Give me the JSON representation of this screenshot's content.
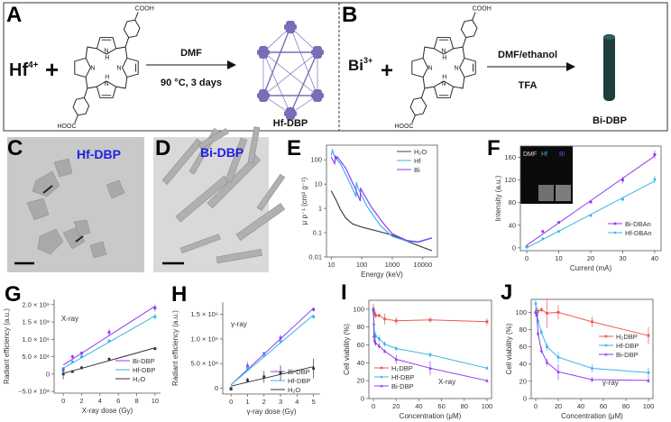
{
  "panels": {
    "A": {
      "letter": "A",
      "ion": "Hf",
      "ion_charge": "4+",
      "plus": "+",
      "reagent": "DMF",
      "conditions": "90 °C, 3 days",
      "product": "Hf-DBP"
    },
    "B": {
      "letter": "B",
      "ion": "Bi",
      "ion_charge": "3+",
      "plus": "+",
      "reagent": "DMF/ethanol",
      "conditions": "TFA",
      "product": "Bi-DBP"
    },
    "C": {
      "letter": "C",
      "title": "Hf-DBP"
    },
    "D": {
      "letter": "D",
      "title": "Bi-DBP"
    },
    "E": {
      "letter": "E"
    },
    "F": {
      "letter": "F",
      "inset_labels": [
        "DMF",
        "Hf",
        "Bi"
      ]
    },
    "G": {
      "letter": "G"
    },
    "H": {
      "letter": "H"
    },
    "I": {
      "letter": "I"
    },
    "J": {
      "letter": "J"
    }
  },
  "chem": {
    "cooh": "COOH",
    "hooc": "HOOC",
    "n": "N",
    "nh": "N",
    "h": "H"
  },
  "colors": {
    "bi": "#8e3bf0",
    "hf": "#38b4ea",
    "h2o": "#444444",
    "h2dbp": "#ec5a55",
    "cage": "#7b6bb8",
    "rod": "#1d3e40"
  },
  "chart_data": [
    {
      "id": "E",
      "type": "line",
      "xscale": "log",
      "yscale": "log",
      "xlim": [
        7,
        30000
      ],
      "ylim": [
        0.01,
        400
      ],
      "xlabel": "Energy (keV)",
      "ylabel": "μ ρ⁻¹ (cm² g⁻¹)",
      "xticks": [
        {
          "v": 10,
          "label": "10"
        },
        {
          "v": 100,
          "label": "100"
        },
        {
          "v": 1000,
          "label": "1000"
        },
        {
          "v": 10000,
          "label": "10000"
        }
      ],
      "yticks": [
        {
          "v": 0.01,
          "label": "0.01"
        },
        {
          "v": 0.1,
          "label": "0.1"
        },
        {
          "v": 1,
          "label": "1"
        },
        {
          "v": 10,
          "label": "10"
        },
        {
          "v": 100,
          "label": "100"
        }
      ],
      "legend": "top-right",
      "series": [
        {
          "name": "H₂O",
          "color": "#444444",
          "x": [
            10,
            15,
            20,
            30,
            50,
            100,
            300,
            1000,
            3000,
            10000,
            20000
          ],
          "y": [
            5.3,
            2,
            0.9,
            0.4,
            0.23,
            0.17,
            0.12,
            0.08,
            0.045,
            0.025,
            0.018
          ]
        },
        {
          "name": "Hf",
          "color": "#38b4ea",
          "x": [
            10,
            11,
            12,
            13,
            20,
            40,
            65,
            66,
            75,
            150,
            400,
            1000,
            3000,
            7000,
            20000
          ],
          "y": [
            150,
            250,
            170,
            130,
            70,
            12,
            3,
            12,
            7,
            1.2,
            0.2,
            0.07,
            0.045,
            0.04,
            0.06
          ]
        },
        {
          "name": "Bi",
          "color": "#8e3bf0",
          "x": [
            10,
            13,
            14,
            15,
            16,
            30,
            60,
            90,
            91,
            100,
            200,
            500,
            1000,
            3000,
            7000,
            20000
          ],
          "y": [
            130,
            70,
            150,
            110,
            130,
            45,
            7,
            2,
            7,
            5.5,
            1.2,
            0.25,
            0.09,
            0.048,
            0.042,
            0.062
          ]
        }
      ]
    },
    {
      "id": "F",
      "type": "scatter",
      "fit": true,
      "xlim": [
        -2,
        42
      ],
      "ylim": [
        -5,
        180
      ],
      "xlabel": "Current (mA)",
      "ylabel": "Intensity (a.u.)",
      "xticks": [
        {
          "v": 0,
          "label": "0"
        },
        {
          "v": 10,
          "label": "10"
        },
        {
          "v": 20,
          "label": "20"
        },
        {
          "v": 30,
          "label": "30"
        },
        {
          "v": 40,
          "label": "40"
        }
      ],
      "yticks": [
        {
          "v": 0,
          "label": "0"
        },
        {
          "v": 40,
          "label": "40"
        },
        {
          "v": 80,
          "label": "80"
        },
        {
          "v": 120,
          "label": "120"
        },
        {
          "v": 160,
          "label": "160"
        }
      ],
      "legend": "bottom-right",
      "series": [
        {
          "name": "Bi-DBAn",
          "color": "#8e3bf0",
          "marker": "square",
          "x": [
            0,
            5,
            10,
            20,
            30,
            40
          ],
          "y": [
            2,
            29,
            45,
            81,
            120,
            165
          ],
          "err": [
            1,
            1,
            2,
            2,
            6,
            7
          ]
        },
        {
          "name": "Hf-DBAn",
          "color": "#38b4ea",
          "marker": "circle",
          "x": [
            0,
            5,
            10,
            20,
            30,
            40
          ],
          "y": [
            1,
            16,
            29,
            57,
            86,
            121
          ],
          "err": [
            1,
            1,
            1,
            1,
            4,
            6
          ]
        }
      ]
    },
    {
      "id": "G",
      "type": "scatter",
      "fit": true,
      "xlim": [
        -1,
        10.6
      ],
      "ylim": [
        -550000000,
        2150000000
      ],
      "xlabel": "X-ray dose (Gy)",
      "ylabel": "Radiant efficiency (a.u.)",
      "annotation": "X-ray",
      "xticks": [
        {
          "v": 0,
          "label": "0"
        },
        {
          "v": 2,
          "label": "2"
        },
        {
          "v": 4,
          "label": "4"
        },
        {
          "v": 6,
          "label": "6"
        },
        {
          "v": 8,
          "label": "8"
        },
        {
          "v": 10,
          "label": "10"
        }
      ],
      "yticks": [
        {
          "v": -500000000,
          "label": "−5.0 × 10⁸"
        },
        {
          "v": 0,
          "label": "0"
        },
        {
          "v": 500000000,
          "label": "5.0 × 10⁸"
        },
        {
          "v": 1000000000,
          "label": "1.0 × 10⁹"
        },
        {
          "v": 1500000000,
          "label": "1.5 × 10⁹"
        },
        {
          "v": 2000000000,
          "label": "2.0 × 10⁹"
        }
      ],
      "legend": "bottom-right",
      "series": [
        {
          "name": "Bi-DBP",
          "color": "#8e3bf0",
          "marker": "square",
          "x": [
            0,
            1,
            2,
            5,
            10
          ],
          "y": [
            150000000,
            500000000,
            600000000,
            1200000000,
            1900000000
          ],
          "err": [
            50000000,
            50000000,
            50000000,
            100000000,
            100000000
          ]
        },
        {
          "name": "Hf-DBP",
          "color": "#38b4ea",
          "marker": "square",
          "x": [
            0,
            1,
            2,
            5,
            10
          ],
          "y": [
            100000000,
            350000000,
            500000000,
            950000000,
            1650000000
          ],
          "err": [
            100000000,
            50000000,
            50000000,
            50000000,
            80000000
          ]
        },
        {
          "name": "H₂O",
          "color": "#333333",
          "marker": "square",
          "x": [
            0,
            1,
            2,
            5,
            10
          ],
          "y": [
            0,
            70000000,
            180000000,
            430000000,
            730000000
          ],
          "err": [
            150000000,
            20000000,
            20000000,
            20000000,
            40000000
          ]
        }
      ]
    },
    {
      "id": "H",
      "type": "scatter",
      "fit": true,
      "xlim": [
        -0.5,
        5.4
      ],
      "ylim": [
        -120000000,
        1750000000
      ],
      "xlabel": "γ-ray dose (Gy)",
      "ylabel": "Radiant efficiency (a.u.)",
      "annotation": "γ-ray",
      "xticks": [
        {
          "v": 0,
          "label": "0"
        },
        {
          "v": 1,
          "label": "1"
        },
        {
          "v": 2,
          "label": "2"
        },
        {
          "v": 3,
          "label": "3"
        },
        {
          "v": 4,
          "label": "4"
        },
        {
          "v": 5,
          "label": "5"
        }
      ],
      "yticks": [
        {
          "v": 0,
          "label": "0"
        },
        {
          "v": 500000000,
          "label": "5.0 × 10⁸"
        },
        {
          "v": 1000000000,
          "label": "1.0 × 10⁹"
        },
        {
          "v": 1500000000,
          "label": "1.5 × 10⁹"
        }
      ],
      "legend": "bottom-right",
      "series": [
        {
          "name": "Bi-DBP",
          "color": "#8e3bf0",
          "marker": "square",
          "x": [
            0,
            1,
            2,
            3,
            5
          ],
          "y": [
            0,
            450000000,
            700000000,
            1020000000,
            1600000000
          ],
          "err": [
            30000000,
            80000000,
            40000000,
            60000000,
            40000000
          ]
        },
        {
          "name": "Hf-DBP",
          "color": "#38b4ea",
          "marker": "square",
          "x": [
            0,
            1,
            2,
            3,
            5
          ],
          "y": [
            0,
            400000000,
            670000000,
            950000000,
            1450000000
          ],
          "err": [
            30000000,
            50000000,
            40000000,
            40000000,
            20000000
          ]
        },
        {
          "name": "H₂O",
          "color": "#333333",
          "marker": "square",
          "x": [
            0,
            1,
            2,
            3,
            5
          ],
          "y": [
            -20000000,
            160000000,
            230000000,
            310000000,
            400000000
          ],
          "err": [
            30000000,
            50000000,
            120000000,
            150000000,
            200000000
          ]
        }
      ]
    },
    {
      "id": "I",
      "type": "line",
      "markers": true,
      "xlim": [
        -4,
        104
      ],
      "ylim": [
        0,
        110
      ],
      "xlabel": "Concentration (μM)",
      "ylabel": "Cell viability (%)",
      "annotation": "X-ray",
      "xticks": [
        {
          "v": 0,
          "label": "0"
        },
        {
          "v": 20,
          "label": "20"
        },
        {
          "v": 40,
          "label": "40"
        },
        {
          "v": 60,
          "label": "60"
        },
        {
          "v": 80,
          "label": "80"
        },
        {
          "v": 100,
          "label": "100"
        }
      ],
      "yticks": [
        {
          "v": 0,
          "label": "0"
        },
        {
          "v": 20,
          "label": "20"
        },
        {
          "v": 40,
          "label": "40"
        },
        {
          "v": 60,
          "label": "60"
        },
        {
          "v": 80,
          "label": "80"
        },
        {
          "v": 100,
          "label": "100"
        }
      ],
      "legend": "bottom-left",
      "series": [
        {
          "name": "H₂DBP",
          "color": "#ec5a55",
          "marker": "square",
          "x": [
            0,
            0.5,
            1,
            2,
            5,
            10,
            20,
            50,
            100
          ],
          "y": [
            100,
            97,
            95,
            93,
            93,
            89,
            87,
            88,
            86
          ],
          "err": [
            6,
            4,
            3,
            3,
            2,
            6,
            4,
            3,
            4
          ]
        },
        {
          "name": "Hf-DBP",
          "color": "#38b4ea",
          "marker": "circle",
          "x": [
            0,
            0.5,
            1,
            2,
            5,
            10,
            20,
            50,
            100
          ],
          "y": [
            98,
            83,
            72,
            70,
            67,
            61,
            56,
            49,
            34
          ],
          "err": [
            5,
            5,
            4,
            4,
            4,
            3,
            3,
            3,
            2
          ]
        },
        {
          "name": "Bi-DBP",
          "color": "#8e3bf0",
          "marker": "triangle",
          "x": [
            0,
            0.5,
            1,
            2,
            5,
            10,
            20,
            50,
            100
          ],
          "y": [
            100,
            70,
            65,
            62,
            59,
            53,
            44,
            34,
            20
          ],
          "err": [
            3,
            4,
            3,
            3,
            3,
            2,
            5,
            8,
            2
          ]
        }
      ]
    },
    {
      "id": "J",
      "type": "line",
      "markers": true,
      "xlim": [
        -4,
        104
      ],
      "ylim": [
        0,
        115
      ],
      "xlabel": "Concentration (μM)",
      "ylabel": "Cell viability (%)",
      "annotation": "γ-ray",
      "xticks": [
        {
          "v": 0,
          "label": "0"
        },
        {
          "v": 20,
          "label": "20"
        },
        {
          "v": 40,
          "label": "40"
        },
        {
          "v": 60,
          "label": "60"
        },
        {
          "v": 80,
          "label": "80"
        },
        {
          "v": 100,
          "label": "100"
        }
      ],
      "yticks": [
        {
          "v": 0,
          "label": "0"
        },
        {
          "v": 20,
          "label": "20"
        },
        {
          "v": 40,
          "label": "40"
        },
        {
          "v": 60,
          "label": "60"
        },
        {
          "v": 80,
          "label": "80"
        },
        {
          "v": 100,
          "label": "100"
        }
      ],
      "legend": "right",
      "series": [
        {
          "name": "H₂DBP",
          "color": "#ec5a55",
          "marker": "square",
          "x": [
            0,
            1,
            2,
            5,
            10,
            20,
            50,
            100
          ],
          "y": [
            100,
            101,
            101,
            103,
            99,
            100,
            89,
            73
          ],
          "err": [
            5,
            4,
            4,
            3,
            17,
            8,
            6,
            10
          ]
        },
        {
          "name": "Hf-DBP",
          "color": "#38b4ea",
          "marker": "circle",
          "x": [
            0,
            1,
            2,
            5,
            10,
            20,
            50,
            100
          ],
          "y": [
            110,
            100,
            90,
            77,
            60,
            48,
            35,
            30
          ],
          "err": [
            4,
            4,
            3,
            3,
            4,
            6,
            5,
            6
          ]
        },
        {
          "name": "Bi-DBP",
          "color": "#8e3bf0",
          "marker": "triangle",
          "x": [
            0,
            1,
            2,
            5,
            10,
            20,
            50,
            100
          ],
          "y": [
            100,
            97,
            76,
            56,
            42,
            31,
            22,
            21
          ],
          "err": [
            4,
            3,
            4,
            4,
            4,
            9,
            3,
            3
          ]
        }
      ]
    }
  ]
}
